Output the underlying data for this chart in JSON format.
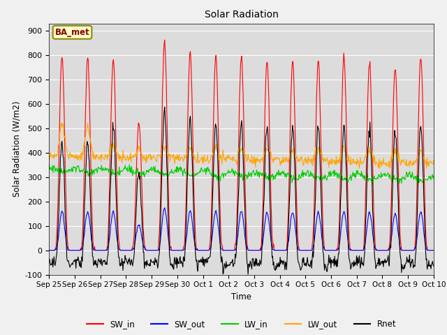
{
  "title": "Solar Radiation",
  "ylabel": "Solar Radiation (W/m2)",
  "xlabel": "Time",
  "ylim": [
    -100,
    930
  ],
  "yticks": [
    -100,
    0,
    100,
    200,
    300,
    400,
    500,
    600,
    700,
    800,
    900
  ],
  "num_days": 15,
  "x_tick_labels": [
    "Sep 25",
    "Sep 26",
    "Sep 27",
    "Sep 28",
    "Sep 29",
    "Sep 30",
    "Oct 1",
    "Oct 2",
    "Oct 3",
    "Oct 4",
    "Oct 5",
    "Oct 6",
    "Oct 7",
    "Oct 8",
    "Oct 9",
    "Oct 10"
  ],
  "colors": {
    "SW_in": "#FF0000",
    "SW_out": "#0000FF",
    "LW_in": "#00CC00",
    "LW_out": "#FFA500",
    "Rnet": "#000000"
  },
  "annotation_box": "BA_met",
  "fig_bg_color": "#F0F0F0",
  "plot_bg_color": "#DCDCDC"
}
